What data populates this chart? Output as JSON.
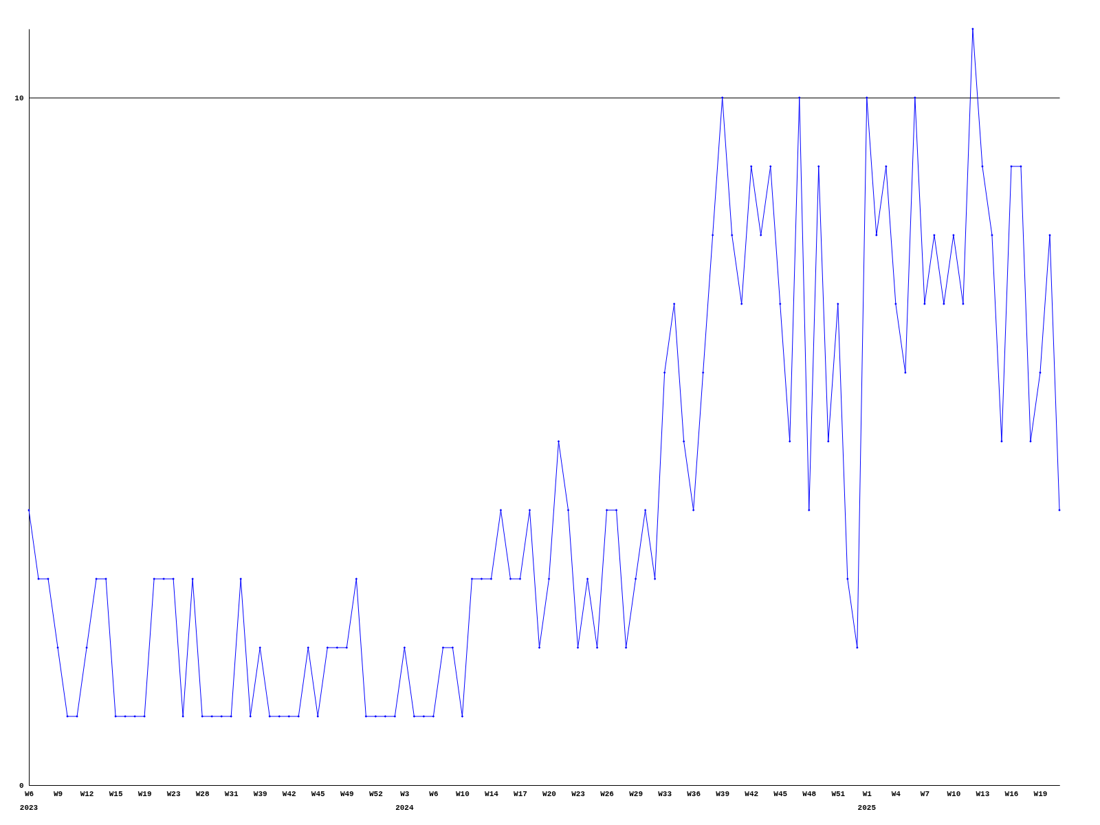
{
  "chart_data": {
    "type": "line",
    "categories": [
      "W6",
      null,
      null,
      "W9",
      null,
      null,
      "W12",
      null,
      null,
      "W15",
      null,
      null,
      "W19",
      null,
      null,
      "W23",
      null,
      null,
      "W28",
      null,
      null,
      "W31",
      null,
      null,
      "W39",
      null,
      null,
      "W42",
      null,
      null,
      "W45",
      null,
      null,
      "W49",
      null,
      null,
      "W52",
      null,
      null,
      "W3",
      null,
      null,
      "W6",
      null,
      null,
      "W10",
      null,
      null,
      "W14",
      null,
      null,
      "W17",
      null,
      null,
      "W20",
      null,
      null,
      "W23",
      null,
      null,
      "W26",
      null,
      null,
      "W29",
      null,
      null,
      "W33",
      null,
      null,
      "W36",
      null,
      null,
      "W39",
      null,
      null,
      "W42",
      null,
      null,
      "W45",
      null,
      null,
      "W48",
      null,
      null,
      "W51",
      null,
      null,
      "W1",
      null,
      null,
      "W4",
      null,
      null,
      "W7",
      null,
      null,
      "W10",
      null,
      null,
      "W13",
      null,
      null,
      "W16",
      null,
      null,
      "W19",
      null,
      null
    ],
    "series": [
      {
        "color": "#0000ff",
        "values": [
          4,
          3,
          3,
          2,
          1,
          1,
          2,
          3,
          3,
          1,
          1,
          1,
          1,
          3,
          3,
          3,
          1,
          3,
          1,
          1,
          1,
          1,
          3,
          1,
          2,
          1,
          1,
          1,
          1,
          2,
          1,
          2,
          2,
          2,
          3,
          1,
          1,
          1,
          1,
          2,
          1,
          1,
          1,
          2,
          2,
          1,
          3,
          3,
          3,
          4,
          3,
          3,
          4,
          2,
          3,
          5,
          4,
          2,
          3,
          2,
          4,
          4,
          2,
          3,
          4,
          3,
          6,
          7,
          5,
          4,
          6,
          8,
          10,
          8,
          7,
          9,
          8,
          9,
          7,
          5,
          10,
          4,
          9,
          5,
          7,
          3,
          2,
          10,
          8,
          9,
          7,
          6,
          10,
          7,
          8,
          7,
          8,
          7,
          11,
          9,
          8,
          5,
          9,
          9,
          5,
          6,
          8,
          4
        ]
      }
    ],
    "ylim": [
      0,
      11
    ],
    "yticks": [
      0,
      10
    ],
    "grid": "y",
    "marker": "diamond",
    "line_style": "solid",
    "annotations": [
      "2023",
      "2024",
      "2025"
    ]
  }
}
